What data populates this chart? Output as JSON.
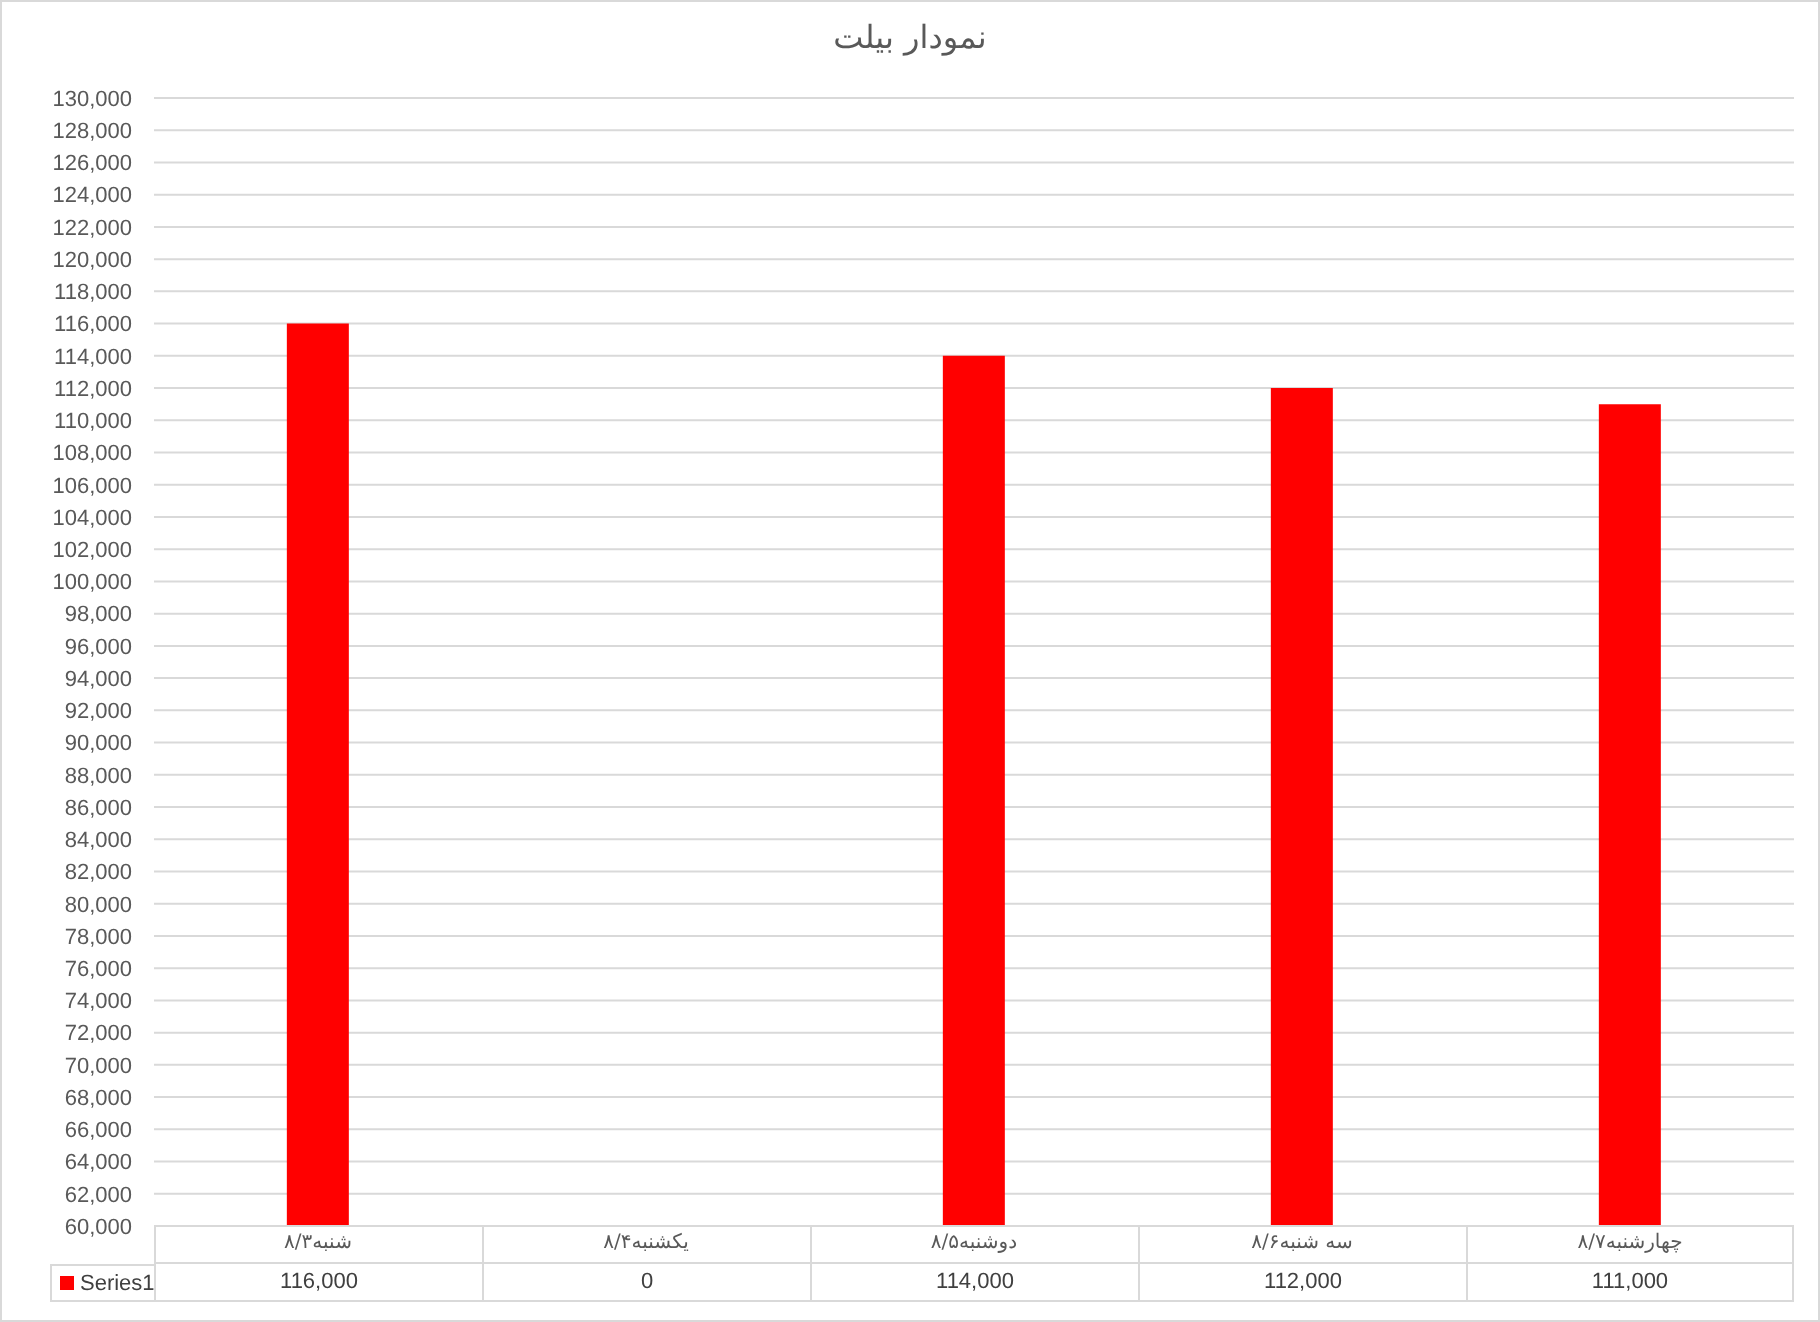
{
  "chart_data": {
    "type": "bar",
    "title": "نمودار بیلت",
    "categories": [
      "شنبه۸/۳",
      "یکشنبه۸/۴",
      "دوشنبه۸/۵",
      "سه شنبه۸/۶",
      "چهارشنبه۸/۷"
    ],
    "series": [
      {
        "name": "Series1",
        "color": "#ff0000",
        "values": [
          116000,
          null,
          114000,
          112000,
          111000
        ],
        "value_labels": [
          "116,000",
          "0",
          "114,000",
          "112,000",
          "111,000"
        ]
      }
    ],
    "ylim": [
      60000,
      130000
    ],
    "yticks": [
      {
        "value": 60000,
        "label": "60,000"
      },
      {
        "value": 62000,
        "label": "62,000"
      },
      {
        "value": 64000,
        "label": "64,000"
      },
      {
        "value": 66000,
        "label": "66,000"
      },
      {
        "value": 68000,
        "label": "68,000"
      },
      {
        "value": 70000,
        "label": "70,000"
      },
      {
        "value": 72000,
        "label": "72,000"
      },
      {
        "value": 74000,
        "label": "74,000"
      },
      {
        "value": 76000,
        "label": "76,000"
      },
      {
        "value": 78000,
        "label": "78,000"
      },
      {
        "value": 80000,
        "label": "80,000"
      },
      {
        "value": 82000,
        "label": "82,000"
      },
      {
        "value": 84000,
        "label": "84,000"
      },
      {
        "value": 86000,
        "label": "86,000"
      },
      {
        "value": 88000,
        "label": "88,000"
      },
      {
        "value": 90000,
        "label": "90,000"
      },
      {
        "value": 92000,
        "label": "92,000"
      },
      {
        "value": 94000,
        "label": "94,000"
      },
      {
        "value": 96000,
        "label": "96,000"
      },
      {
        "value": 98000,
        "label": "98,000"
      },
      {
        "value": 100000,
        "label": "100,000"
      },
      {
        "value": 102000,
        "label": "102,000"
      },
      {
        "value": 104000,
        "label": "104,000"
      },
      {
        "value": 106000,
        "label": "106,000"
      },
      {
        "value": 108000,
        "label": "108,000"
      },
      {
        "value": 110000,
        "label": "110,000"
      },
      {
        "value": 112000,
        "label": "112,000"
      },
      {
        "value": 114000,
        "label": "114,000"
      },
      {
        "value": 116000,
        "label": "116,000"
      },
      {
        "value": 118000,
        "label": "118,000"
      },
      {
        "value": 120000,
        "label": "120,000"
      },
      {
        "value": 122000,
        "label": "122,000"
      },
      {
        "value": 124000,
        "label": "124,000"
      },
      {
        "value": 126000,
        "label": "126,000"
      },
      {
        "value": 128000,
        "label": "128,000"
      },
      {
        "value": 130000,
        "label": "130,000"
      }
    ],
    "grid": "y",
    "legend": "bottom"
  }
}
